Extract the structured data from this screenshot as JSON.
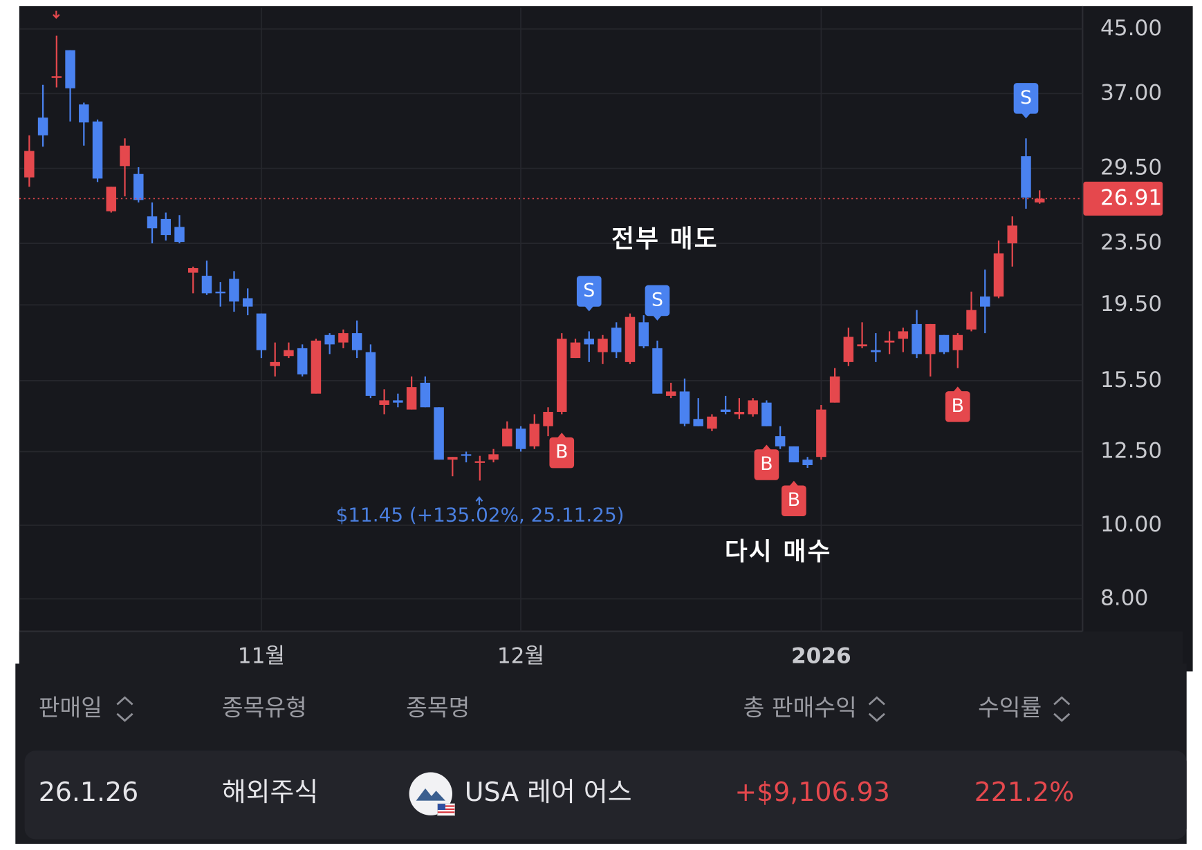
{
  "chart_data": {
    "type": "candlestick",
    "log_scale": true,
    "grid": true,
    "up_color": "#e5484d",
    "down_color": "#4a82f0",
    "ylim": [
      7.25,
      48.0
    ],
    "yticks": [
      {
        "value": 45,
        "label": "45.00"
      },
      {
        "value": 37,
        "label": "37.00"
      },
      {
        "value": 29.5,
        "label": "29.50"
      },
      {
        "value": 23.5,
        "label": "23.50"
      },
      {
        "value": 19.5,
        "label": "19.50"
      },
      {
        "value": 15.5,
        "label": "15.50"
      },
      {
        "value": 12.5,
        "label": "12.50"
      },
      {
        "value": 10,
        "label": "10.00"
      },
      {
        "value": 8,
        "label": "8.00"
      }
    ],
    "categories": [
      null,
      null,
      null,
      null,
      null,
      null,
      null,
      null,
      null,
      null,
      null,
      null,
      null,
      null,
      null,
      null,
      null,
      "11월",
      null,
      null,
      null,
      null,
      null,
      null,
      null,
      null,
      null,
      null,
      null,
      null,
      null,
      null,
      null,
      null,
      null,
      null,
      "12월",
      null,
      null,
      null,
      null,
      null,
      null,
      null,
      null,
      null,
      null,
      null,
      null,
      null,
      null,
      null,
      null,
      null,
      null,
      null,
      null,
      null,
      "2026",
      null,
      null,
      null,
      null,
      null,
      null,
      null,
      null,
      null,
      null,
      null,
      null,
      null,
      null,
      null,
      null
    ],
    "open": [
      28.7,
      34.4,
      38.8,
      42.2,
      35.8,
      34.0,
      25.9,
      29.7,
      29.0,
      25.5,
      25.3,
      24.7,
      21.5,
      21.3,
      20.3,
      21.1,
      19.9,
      19.0,
      16.2,
      16.7,
      17.1,
      14.9,
      17.8,
      17.4,
      17.9,
      16.9,
      14.4,
      14.6,
      14.2,
      15.4,
      14.3,
      12.2,
      12.4,
      12.08,
      12.2,
      12.7,
      13.4,
      12.7,
      13.5,
      14.1,
      16.6,
      17.6,
      16.9,
      18.2,
      16.4,
      18.5,
      17.1,
      14.8,
      15.0,
      13.8,
      13.4,
      14.2,
      14.0,
      14.0,
      14.5,
      13.1,
      12.7,
      12.2,
      12.3,
      14.5,
      16.4,
      17.2,
      17.0,
      17.4,
      17.6,
      18.4,
      16.8,
      17.8,
      17.0,
      18.1,
      20.0,
      20.0,
      23.5,
      30.6,
      26.6
    ],
    "high": [
      32.6,
      38.0,
      44.1,
      42.2,
      36.0,
      34.2,
      27.9,
      32.3,
      29.6,
      26.6,
      25.8,
      25.6,
      21.9,
      22.3,
      20.9,
      21.6,
      20.5,
      19.0,
      17.4,
      17.4,
      17.3,
      17.6,
      17.9,
      18.1,
      18.6,
      17.3,
      15.1,
      14.9,
      15.7,
      15.7,
      14.3,
      12.3,
      12.5,
      12.34,
      12.6,
      13.7,
      13.5,
      14.0,
      14.3,
      17.9,
      17.6,
      18.0,
      17.8,
      18.5,
      19.0,
      18.9,
      17.5,
      15.4,
      15.6,
      14.7,
      14.0,
      14.8,
      14.7,
      14.7,
      14.6,
      13.5,
      12.7,
      12.3,
      14.4,
      16.1,
      18.2,
      18.5,
      17.9,
      18.0,
      18.2,
      19.2,
      18.4,
      17.8,
      17.9,
      20.3,
      21.7,
      23.7,
      25.5,
      32.3,
      27.6
    ],
    "low": [
      27.9,
      31.5,
      37.7,
      34.0,
      31.6,
      28.3,
      25.8,
      27.1,
      26.6,
      23.5,
      23.7,
      23.5,
      20.2,
      20.1,
      19.4,
      19.1,
      18.9,
      16.6,
      15.7,
      16.6,
      15.7,
      14.9,
      16.8,
      17.1,
      16.6,
      14.7,
      14.0,
      14.3,
      14.2,
      14.3,
      12.2,
      11.6,
      12.1,
      11.45,
      12.1,
      12.7,
      12.5,
      12.6,
      13.1,
      14.0,
      16.6,
      16.4,
      16.3,
      16.6,
      16.3,
      17.1,
      14.9,
      14.7,
      13.5,
      13.5,
      13.3,
      14.0,
      13.8,
      13.9,
      13.5,
      12.6,
      12.1,
      11.9,
      12.2,
      14.5,
      16.2,
      17.1,
      16.4,
      16.8,
      16.9,
      16.6,
      15.7,
      16.8,
      16.1,
      18.0,
      17.9,
      19.9,
      21.9,
      26.1,
      26.5
    ],
    "close": [
      31.1,
      32.6,
      39.0,
      37.6,
      33.9,
      28.6,
      27.9,
      31.6,
      26.8,
      24.6,
      24.1,
      23.6,
      21.8,
      20.2,
      20.2,
      19.7,
      19.4,
      17.0,
      16.4,
      17.0,
      15.8,
      17.5,
      17.3,
      17.9,
      17.0,
      14.8,
      14.6,
      14.5,
      15.2,
      14.3,
      12.2,
      12.3,
      12.36,
      12.14,
      12.4,
      13.4,
      12.6,
      13.6,
      14.1,
      17.6,
      17.4,
      17.3,
      17.6,
      16.9,
      18.8,
      17.2,
      14.9,
      15.0,
      13.6,
      13.5,
      13.9,
      14.1,
      14.1,
      14.6,
      13.5,
      12.7,
      12.1,
      12.0,
      14.2,
      15.7,
      17.7,
      17.3,
      16.9,
      17.5,
      18.0,
      16.8,
      18.4,
      16.9,
      17.8,
      19.2,
      19.4,
      22.8,
      24.8,
      27.0,
      26.91
    ],
    "signals": [
      null,
      null,
      null,
      null,
      null,
      null,
      null,
      null,
      null,
      null,
      null,
      null,
      null,
      null,
      null,
      null,
      null,
      null,
      null,
      null,
      null,
      null,
      null,
      null,
      null,
      null,
      null,
      null,
      null,
      null,
      null,
      null,
      null,
      null,
      null,
      null,
      null,
      null,
      null,
      "B",
      null,
      "S",
      null,
      null,
      null,
      null,
      "S",
      null,
      null,
      null,
      null,
      null,
      null,
      null,
      "B",
      null,
      "B",
      null,
      null,
      null,
      null,
      null,
      null,
      null,
      null,
      null,
      null,
      null,
      "B",
      null,
      null,
      null,
      null,
      "S",
      null
    ],
    "annotations": [
      "전부 매도",
      "다시 매수",
      "$11.45 (+135.02%, 25.11.25)"
    ]
  },
  "table": {
    "headers": [
      "판매일",
      "종목유형",
      "종목명",
      "총 판매수익",
      "수익률"
    ],
    "rows": [
      [
        "26.1.26",
        "해외주식",
        "USA 레어 어스",
        "+$9,106.93",
        "221.2%"
      ]
    ]
  }
}
